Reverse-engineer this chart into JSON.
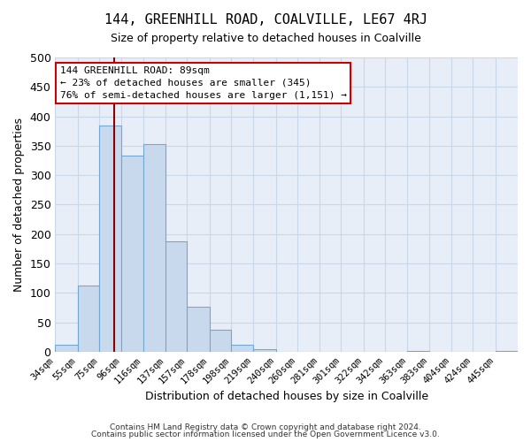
{
  "title": "144, GREENHILL ROAD, COALVILLE, LE67 4RJ",
  "subtitle": "Size of property relative to detached houses in Coalville",
  "xlabel": "Distribution of detached houses by size in Coalville",
  "ylabel": "Number of detached properties",
  "bar_labels": [
    "34sqm",
    "55sqm",
    "75sqm",
    "96sqm",
    "116sqm",
    "137sqm",
    "157sqm",
    "178sqm",
    "198sqm",
    "219sqm",
    "240sqm",
    "260sqm",
    "281sqm",
    "301sqm",
    "322sqm",
    "342sqm",
    "363sqm",
    "383sqm",
    "404sqm",
    "424sqm",
    "445sqm"
  ],
  "bar_values": [
    12,
    113,
    385,
    333,
    353,
    188,
    76,
    37,
    12,
    5,
    0,
    0,
    0,
    0,
    0,
    0,
    1,
    0,
    0,
    0,
    1
  ],
  "bar_color": "#c9d9ed",
  "bar_edgecolor": "#6fa8d0",
  "grid_color": "#c8d8e8",
  "background_color": "#e8eef8",
  "vline_color": "#8b0000",
  "annotation_text": "144 GREENHILL ROAD: 89sqm\n← 23% of detached houses are smaller (345)\n76% of semi-detached houses are larger (1,151) →",
  "annotation_box_edgecolor": "#cc0000",
  "ylim": [
    0,
    500
  ],
  "footnote1": "Contains HM Land Registry data © Crown copyright and database right 2024.",
  "footnote2": "Contains public sector information licensed under the Open Government Licence v3.0.",
  "bin_edges": [
    34,
    55,
    75,
    96,
    116,
    137,
    157,
    178,
    198,
    219,
    240,
    260,
    281,
    301,
    322,
    342,
    363,
    383,
    404,
    424,
    445,
    466
  ]
}
